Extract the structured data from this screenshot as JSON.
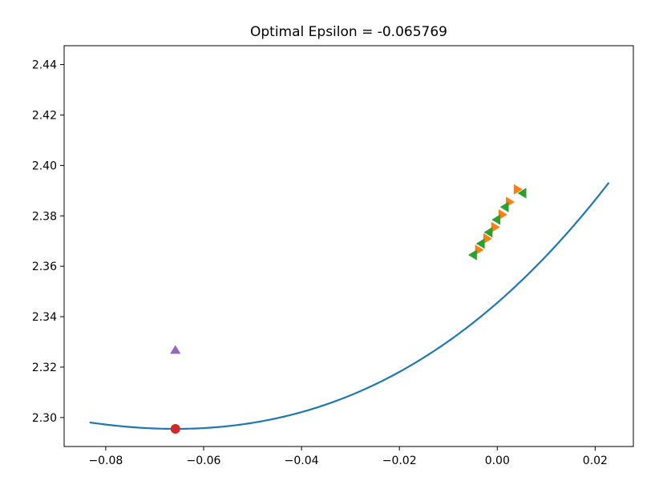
{
  "chart_data": {
    "type": "line",
    "title": "Optimal Epsilon = -0.065769",
    "xlabel": "",
    "ylabel": "",
    "xlim": [
      -0.0885,
      0.0278
    ],
    "ylim": [
      2.2885,
      2.4475
    ],
    "xticks": [
      -0.08,
      -0.06,
      -0.04,
      -0.02,
      0.0,
      0.02
    ],
    "xtick_labels": [
      "−0.08",
      "−0.06",
      "−0.04",
      "−0.02",
      "0.00",
      "0.02"
    ],
    "yticks": [
      2.3,
      2.32,
      2.34,
      2.36,
      2.38,
      2.4,
      2.42,
      2.44
    ],
    "ytick_labels": [
      "2.30",
      "2.32",
      "2.34",
      "2.36",
      "2.38",
      "2.40",
      "2.42",
      "2.44"
    ],
    "grid": false,
    "curve": {
      "color": "#1f77b4",
      "x_range": [
        -0.0833,
        0.0228
      ],
      "vertex_x": -0.065769,
      "vertex_y": 2.2955,
      "quad_coef": 9.0,
      "cubic_coef": 39.0
    },
    "series": [
      {
        "marker": "triangle-right",
        "color": "#ff7f0e",
        "x": [
          -0.0039,
          -0.0022,
          -0.0006,
          0.0009,
          0.0024,
          0.004
        ],
        "y": [
          2.3665,
          2.371,
          2.3755,
          2.3805,
          2.3855,
          2.3905
        ]
      },
      {
        "marker": "triangle-left",
        "color": "#2ca02c",
        "x": [
          -0.0048,
          -0.0032,
          -0.0016,
          -0.0,
          0.0017,
          0.0053
        ],
        "y": [
          2.3645,
          2.369,
          2.3735,
          2.3785,
          2.3835,
          2.389
        ]
      },
      {
        "marker": "circle",
        "color": "#d62728",
        "x": [
          -0.065769
        ],
        "y": [
          2.2955
        ]
      },
      {
        "marker": "triangle-up",
        "color": "#9467bd",
        "x": [
          -0.065769
        ],
        "y": [
          2.3265
        ]
      }
    ]
  }
}
